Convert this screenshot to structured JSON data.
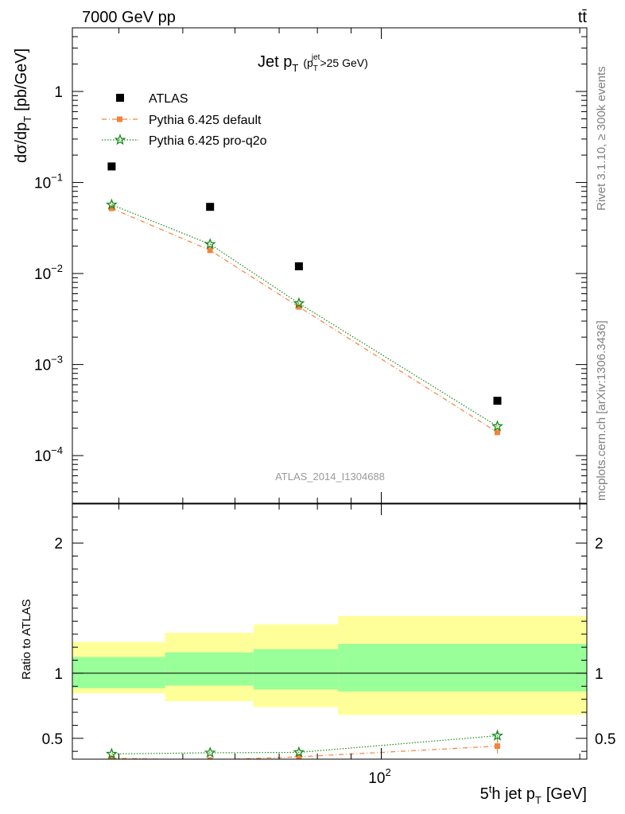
{
  "header": {
    "left": "7000 GeV pp",
    "right": "tt̄"
  },
  "side": {
    "top": "Rivet 3.1.10, ≥ 300k events",
    "bottom": "mcplots.cern.ch [arXiv:1306.3436]"
  },
  "colors": {
    "atlas": "#000000",
    "default": "#f5823c",
    "proq2o": "#1a8a1a",
    "band_inner": "#99ff99",
    "band_outer": "#ffff99"
  },
  "chart_data": [
    {
      "type": "scatter",
      "title": {
        "main": "Jet p",
        "main_sub": "T",
        "cond_open": "(p",
        "cond_sup": "jet",
        "cond_sub": "T",
        "cond_rest": ">25 GeV)"
      },
      "ylabel": {
        "main": "dσ/dp",
        "sub": "T",
        "unit": "[pb/GeV]"
      },
      "yscale": "log",
      "ylim": [
        3e-05,
        5
      ],
      "xscale": "log",
      "xlim": [
        34,
        205
      ],
      "y_ticks": [
        {
          "v": 1,
          "base": "1",
          "exp": ""
        },
        {
          "v": 0.1,
          "base": "10",
          "exp": "−1"
        },
        {
          "v": 0.01,
          "base": "10",
          "exp": "−2"
        },
        {
          "v": 0.001,
          "base": "10",
          "exp": "−3"
        },
        {
          "v": 0.0001,
          "base": "10",
          "exp": "−4"
        }
      ],
      "watermark": "ATLAS_2014_I1304688",
      "legend_position": "top-left",
      "series": [
        {
          "name": "ATLAS",
          "marker": "square",
          "x": [
            39,
            55,
            75,
            150
          ],
          "y": [
            0.15,
            0.054,
            0.012,
            0.0004
          ]
        },
        {
          "name": "Pythia 6.425 default",
          "marker": "square-small",
          "line": "dashdot",
          "x": [
            39,
            55,
            75,
            150
          ],
          "y": [
            0.052,
            0.018,
            0.0043,
            0.00018
          ]
        },
        {
          "name": "Pythia 6.425 pro-q2o",
          "marker": "star",
          "line": "dotted",
          "x": [
            39,
            55,
            75,
            150
          ],
          "y": [
            0.057,
            0.021,
            0.0047,
            0.00021
          ]
        }
      ]
    },
    {
      "type": "line",
      "ylabel": "Ratio to ATLAS",
      "xlabel": {
        "pre": "5",
        "sup": "t",
        "mid": "h jet p",
        "sub": "T",
        "unit": "[GeV]"
      },
      "xscale": "log",
      "xlim": [
        34,
        205
      ],
      "ylim": [
        0.34,
        2.3
      ],
      "y_ticks": [
        {
          "v": 2,
          "label": "2"
        },
        {
          "v": 1,
          "label": "1"
        },
        {
          "v": 0.5,
          "label": "0.5"
        }
      ],
      "x_tick_label": {
        "v": 100,
        "base": "10",
        "exp": "2"
      },
      "bands": {
        "edges": [
          34,
          47,
          64,
          86,
          205
        ],
        "inner": [
          [
            0.885,
            1.125
          ],
          [
            0.905,
            1.16
          ],
          [
            0.875,
            1.185
          ],
          [
            0.86,
            1.225
          ]
        ],
        "outer": [
          [
            0.845,
            1.24
          ],
          [
            0.785,
            1.31
          ],
          [
            0.74,
            1.375
          ],
          [
            0.68,
            1.44
          ]
        ]
      },
      "series": [
        {
          "name": "Pythia 6.425 default",
          "marker": "square-small",
          "line": "dashdot",
          "x": [
            39,
            55,
            75,
            150
          ],
          "y": [
            0.347,
            0.333,
            0.358,
            0.44
          ],
          "err": [
            0,
            0,
            0,
            0.06
          ]
        },
        {
          "name": "Pythia 6.425 pro-q2o",
          "marker": "star",
          "line": "dotted",
          "x": [
            39,
            55,
            75,
            150
          ],
          "y": [
            0.38,
            0.389,
            0.392,
            0.52
          ],
          "err": [
            0,
            0,
            0,
            0.045
          ]
        }
      ]
    }
  ]
}
